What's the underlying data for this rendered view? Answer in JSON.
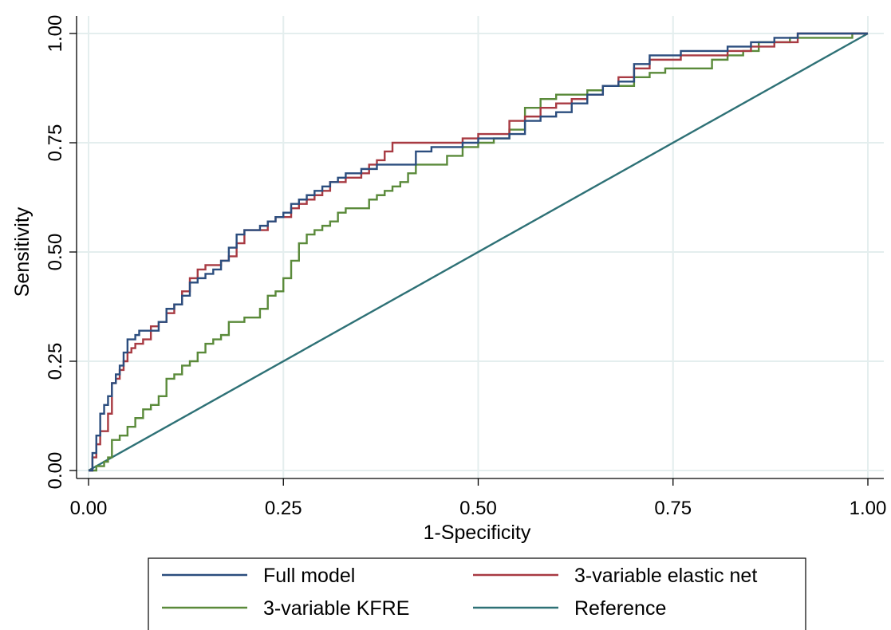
{
  "chart_data": {
    "type": "line",
    "title": "",
    "xlabel": "1-Specificity",
    "ylabel": "Sensitivity",
    "xlim": [
      0,
      1
    ],
    "ylim": [
      0,
      1
    ],
    "grid": true,
    "legend_position": "bottom",
    "x_ticks": [
      "0.00",
      "0.25",
      "0.50",
      "0.75",
      "1.00"
    ],
    "y_ticks": [
      "0.00",
      "0.25",
      "0.50",
      "0.75",
      "1.00"
    ],
    "series": [
      {
        "name": "Full model",
        "color": "#2b4d7e",
        "step": true,
        "x": [
          0,
          0.005,
          0.01,
          0.015,
          0.02,
          0.025,
          0.03,
          0.035,
          0.04,
          0.045,
          0.05,
          0.055,
          0.06,
          0.065,
          0.07,
          0.08,
          0.09,
          0.1,
          0.11,
          0.12,
          0.13,
          0.14,
          0.15,
          0.16,
          0.17,
          0.18,
          0.19,
          0.2,
          0.21,
          0.22,
          0.23,
          0.24,
          0.25,
          0.26,
          0.27,
          0.28,
          0.29,
          0.3,
          0.31,
          0.32,
          0.33,
          0.34,
          0.35,
          0.36,
          0.37,
          0.38,
          0.39,
          0.4,
          0.42,
          0.44,
          0.46,
          0.48,
          0.5,
          0.52,
          0.54,
          0.56,
          0.58,
          0.6,
          0.62,
          0.64,
          0.66,
          0.68,
          0.7,
          0.72,
          0.74,
          0.76,
          0.78,
          0.8,
          0.82,
          0.85,
          0.88,
          0.91,
          0.94,
          0.97,
          1.0
        ],
        "y": [
          0,
          0.04,
          0.08,
          0.13,
          0.15,
          0.17,
          0.2,
          0.22,
          0.24,
          0.27,
          0.3,
          0.3,
          0.31,
          0.32,
          0.32,
          0.32,
          0.34,
          0.37,
          0.38,
          0.4,
          0.43,
          0.44,
          0.45,
          0.46,
          0.48,
          0.51,
          0.54,
          0.55,
          0.55,
          0.56,
          0.57,
          0.58,
          0.59,
          0.61,
          0.62,
          0.63,
          0.64,
          0.65,
          0.66,
          0.67,
          0.68,
          0.68,
          0.69,
          0.69,
          0.7,
          0.7,
          0.7,
          0.7,
          0.73,
          0.74,
          0.74,
          0.75,
          0.76,
          0.76,
          0.77,
          0.8,
          0.81,
          0.82,
          0.84,
          0.86,
          0.88,
          0.89,
          0.93,
          0.95,
          0.95,
          0.96,
          0.96,
          0.96,
          0.97,
          0.98,
          0.99,
          1.0,
          1.0,
          1.0,
          1.0
        ]
      },
      {
        "name": "3-variable elastic net",
        "color": "#a83a42",
        "step": true,
        "x": [
          0,
          0.005,
          0.01,
          0.015,
          0.02,
          0.025,
          0.03,
          0.035,
          0.04,
          0.045,
          0.05,
          0.055,
          0.06,
          0.065,
          0.07,
          0.08,
          0.09,
          0.1,
          0.11,
          0.12,
          0.13,
          0.14,
          0.15,
          0.16,
          0.17,
          0.18,
          0.19,
          0.2,
          0.21,
          0.22,
          0.23,
          0.24,
          0.25,
          0.26,
          0.27,
          0.28,
          0.29,
          0.3,
          0.31,
          0.32,
          0.33,
          0.34,
          0.35,
          0.36,
          0.37,
          0.38,
          0.39,
          0.4,
          0.42,
          0.44,
          0.46,
          0.48,
          0.5,
          0.52,
          0.54,
          0.56,
          0.58,
          0.6,
          0.62,
          0.64,
          0.66,
          0.68,
          0.7,
          0.72,
          0.74,
          0.76,
          0.78,
          0.8,
          0.82,
          0.85,
          0.88,
          0.91,
          0.94,
          0.97,
          1.0
        ],
        "y": [
          0,
          0.03,
          0.06,
          0.09,
          0.09,
          0.13,
          0.2,
          0.21,
          0.23,
          0.25,
          0.27,
          0.28,
          0.29,
          0.29,
          0.3,
          0.33,
          0.34,
          0.36,
          0.38,
          0.41,
          0.44,
          0.46,
          0.47,
          0.47,
          0.48,
          0.49,
          0.52,
          0.55,
          0.55,
          0.55,
          0.57,
          0.58,
          0.58,
          0.6,
          0.61,
          0.62,
          0.63,
          0.64,
          0.66,
          0.66,
          0.67,
          0.67,
          0.68,
          0.7,
          0.71,
          0.73,
          0.75,
          0.75,
          0.75,
          0.75,
          0.75,
          0.76,
          0.77,
          0.77,
          0.8,
          0.81,
          0.83,
          0.84,
          0.85,
          0.86,
          0.88,
          0.9,
          0.92,
          0.94,
          0.94,
          0.95,
          0.95,
          0.95,
          0.96,
          0.97,
          0.98,
          1.0,
          1.0,
          1.0,
          1.0
        ]
      },
      {
        "name": "3-variable KFRE",
        "color": "#5a8a3a",
        "step": true,
        "x": [
          0,
          0.01,
          0.02,
          0.025,
          0.03,
          0.04,
          0.05,
          0.06,
          0.07,
          0.08,
          0.09,
          0.1,
          0.11,
          0.12,
          0.13,
          0.14,
          0.15,
          0.16,
          0.17,
          0.18,
          0.19,
          0.2,
          0.21,
          0.22,
          0.23,
          0.24,
          0.25,
          0.26,
          0.27,
          0.28,
          0.29,
          0.3,
          0.31,
          0.32,
          0.33,
          0.34,
          0.35,
          0.36,
          0.37,
          0.38,
          0.39,
          0.4,
          0.41,
          0.42,
          0.43,
          0.44,
          0.46,
          0.48,
          0.5,
          0.52,
          0.54,
          0.56,
          0.58,
          0.6,
          0.62,
          0.64,
          0.66,
          0.68,
          0.7,
          0.72,
          0.74,
          0.76,
          0.78,
          0.8,
          0.82,
          0.84,
          0.86,
          0.88,
          0.9,
          0.92,
          0.94,
          0.96,
          0.98,
          1.0
        ],
        "y": [
          0,
          0.01,
          0.02,
          0.03,
          0.07,
          0.08,
          0.1,
          0.12,
          0.14,
          0.15,
          0.17,
          0.21,
          0.22,
          0.24,
          0.25,
          0.27,
          0.29,
          0.3,
          0.31,
          0.34,
          0.34,
          0.35,
          0.35,
          0.37,
          0.4,
          0.41,
          0.44,
          0.48,
          0.52,
          0.54,
          0.55,
          0.56,
          0.57,
          0.59,
          0.6,
          0.6,
          0.6,
          0.62,
          0.63,
          0.64,
          0.65,
          0.66,
          0.68,
          0.7,
          0.7,
          0.7,
          0.72,
          0.74,
          0.75,
          0.76,
          0.78,
          0.83,
          0.85,
          0.86,
          0.86,
          0.87,
          0.88,
          0.88,
          0.9,
          0.91,
          0.92,
          0.92,
          0.92,
          0.94,
          0.95,
          0.96,
          0.98,
          0.98,
          0.99,
          0.99,
          0.99,
          0.99,
          1.0,
          1.0
        ]
      },
      {
        "name": "Reference",
        "color": "#2e7176",
        "step": false,
        "x": [
          0,
          1
        ],
        "y": [
          0,
          1
        ]
      }
    ]
  }
}
